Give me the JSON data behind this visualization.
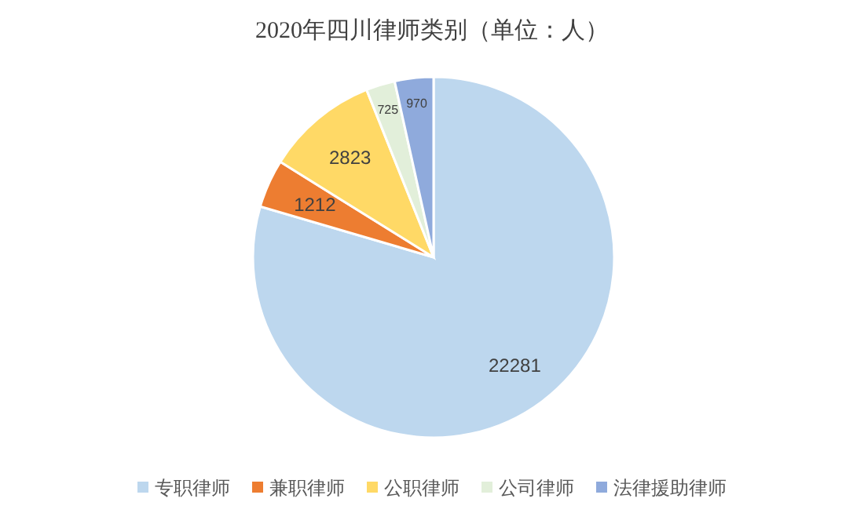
{
  "chart_data": {
    "type": "pie",
    "title": "2020年四川律师类别（单位：人）",
    "categories": [
      "专职律师",
      "兼职律师",
      "公职律师",
      "公司律师",
      "法律援助律师"
    ],
    "values": [
      22281,
      1212,
      2823,
      725,
      970
    ],
    "colors": [
      "#bdd7ee",
      "#ed7d31",
      "#ffd966",
      "#e2efda",
      "#8faadc"
    ],
    "data_labels": true,
    "legend": "bottom"
  }
}
